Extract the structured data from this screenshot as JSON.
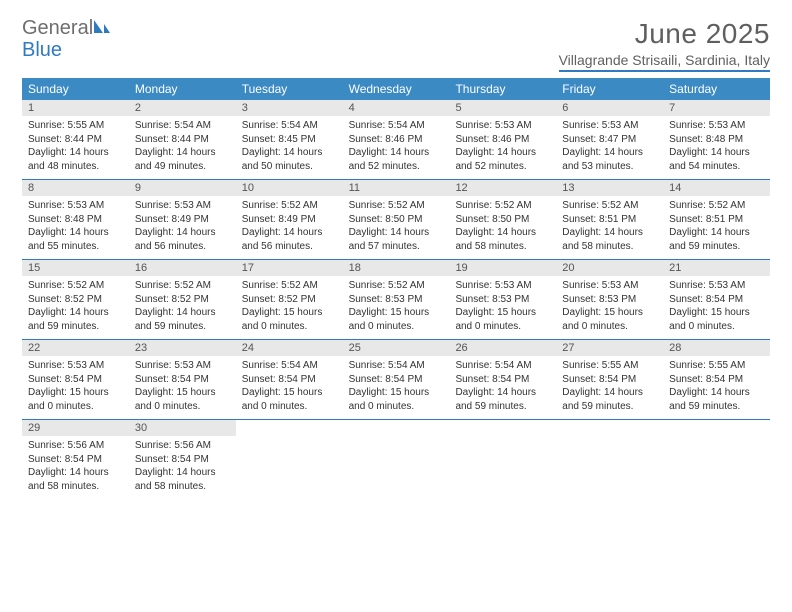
{
  "logo": {
    "text1": "General",
    "text2": "Blue"
  },
  "title": "June 2025",
  "location": "Villagrande Strisaili, Sardinia, Italy",
  "colors": {
    "header_bg": "#3b8ac4",
    "accent": "#2f7bc1",
    "daynum_bg": "#e8e8e8",
    "text_gray": "#5f5f5f"
  },
  "day_names": [
    "Sunday",
    "Monday",
    "Tuesday",
    "Wednesday",
    "Thursday",
    "Friday",
    "Saturday"
  ],
  "weeks": [
    [
      {
        "n": "1",
        "sr": "5:55 AM",
        "ss": "8:44 PM",
        "dh": "14",
        "dm": "48"
      },
      {
        "n": "2",
        "sr": "5:54 AM",
        "ss": "8:44 PM",
        "dh": "14",
        "dm": "49"
      },
      {
        "n": "3",
        "sr": "5:54 AM",
        "ss": "8:45 PM",
        "dh": "14",
        "dm": "50"
      },
      {
        "n": "4",
        "sr": "5:54 AM",
        "ss": "8:46 PM",
        "dh": "14",
        "dm": "52"
      },
      {
        "n": "5",
        "sr": "5:53 AM",
        "ss": "8:46 PM",
        "dh": "14",
        "dm": "52"
      },
      {
        "n": "6",
        "sr": "5:53 AM",
        "ss": "8:47 PM",
        "dh": "14",
        "dm": "53"
      },
      {
        "n": "7",
        "sr": "5:53 AM",
        "ss": "8:48 PM",
        "dh": "14",
        "dm": "54"
      }
    ],
    [
      {
        "n": "8",
        "sr": "5:53 AM",
        "ss": "8:48 PM",
        "dh": "14",
        "dm": "55"
      },
      {
        "n": "9",
        "sr": "5:53 AM",
        "ss": "8:49 PM",
        "dh": "14",
        "dm": "56"
      },
      {
        "n": "10",
        "sr": "5:52 AM",
        "ss": "8:49 PM",
        "dh": "14",
        "dm": "56"
      },
      {
        "n": "11",
        "sr": "5:52 AM",
        "ss": "8:50 PM",
        "dh": "14",
        "dm": "57"
      },
      {
        "n": "12",
        "sr": "5:52 AM",
        "ss": "8:50 PM",
        "dh": "14",
        "dm": "58"
      },
      {
        "n": "13",
        "sr": "5:52 AM",
        "ss": "8:51 PM",
        "dh": "14",
        "dm": "58"
      },
      {
        "n": "14",
        "sr": "5:52 AM",
        "ss": "8:51 PM",
        "dh": "14",
        "dm": "59"
      }
    ],
    [
      {
        "n": "15",
        "sr": "5:52 AM",
        "ss": "8:52 PM",
        "dh": "14",
        "dm": "59"
      },
      {
        "n": "16",
        "sr": "5:52 AM",
        "ss": "8:52 PM",
        "dh": "14",
        "dm": "59"
      },
      {
        "n": "17",
        "sr": "5:52 AM",
        "ss": "8:52 PM",
        "dh": "15",
        "dm": "0"
      },
      {
        "n": "18",
        "sr": "5:52 AM",
        "ss": "8:53 PM",
        "dh": "15",
        "dm": "0"
      },
      {
        "n": "19",
        "sr": "5:53 AM",
        "ss": "8:53 PM",
        "dh": "15",
        "dm": "0"
      },
      {
        "n": "20",
        "sr": "5:53 AM",
        "ss": "8:53 PM",
        "dh": "15",
        "dm": "0"
      },
      {
        "n": "21",
        "sr": "5:53 AM",
        "ss": "8:54 PM",
        "dh": "15",
        "dm": "0"
      }
    ],
    [
      {
        "n": "22",
        "sr": "5:53 AM",
        "ss": "8:54 PM",
        "dh": "15",
        "dm": "0"
      },
      {
        "n": "23",
        "sr": "5:53 AM",
        "ss": "8:54 PM",
        "dh": "15",
        "dm": "0"
      },
      {
        "n": "24",
        "sr": "5:54 AM",
        "ss": "8:54 PM",
        "dh": "15",
        "dm": "0"
      },
      {
        "n": "25",
        "sr": "5:54 AM",
        "ss": "8:54 PM",
        "dh": "15",
        "dm": "0"
      },
      {
        "n": "26",
        "sr": "5:54 AM",
        "ss": "8:54 PM",
        "dh": "14",
        "dm": "59"
      },
      {
        "n": "27",
        "sr": "5:55 AM",
        "ss": "8:54 PM",
        "dh": "14",
        "dm": "59"
      },
      {
        "n": "28",
        "sr": "5:55 AM",
        "ss": "8:54 PM",
        "dh": "14",
        "dm": "59"
      }
    ],
    [
      {
        "n": "29",
        "sr": "5:56 AM",
        "ss": "8:54 PM",
        "dh": "14",
        "dm": "58"
      },
      {
        "n": "30",
        "sr": "5:56 AM",
        "ss": "8:54 PM",
        "dh": "14",
        "dm": "58"
      },
      null,
      null,
      null,
      null,
      null
    ]
  ],
  "labels": {
    "sunrise": "Sunrise:",
    "sunset": "Sunset:",
    "daylight": "Daylight:",
    "hours": "hours",
    "and": "and",
    "minutes": "minutes."
  }
}
